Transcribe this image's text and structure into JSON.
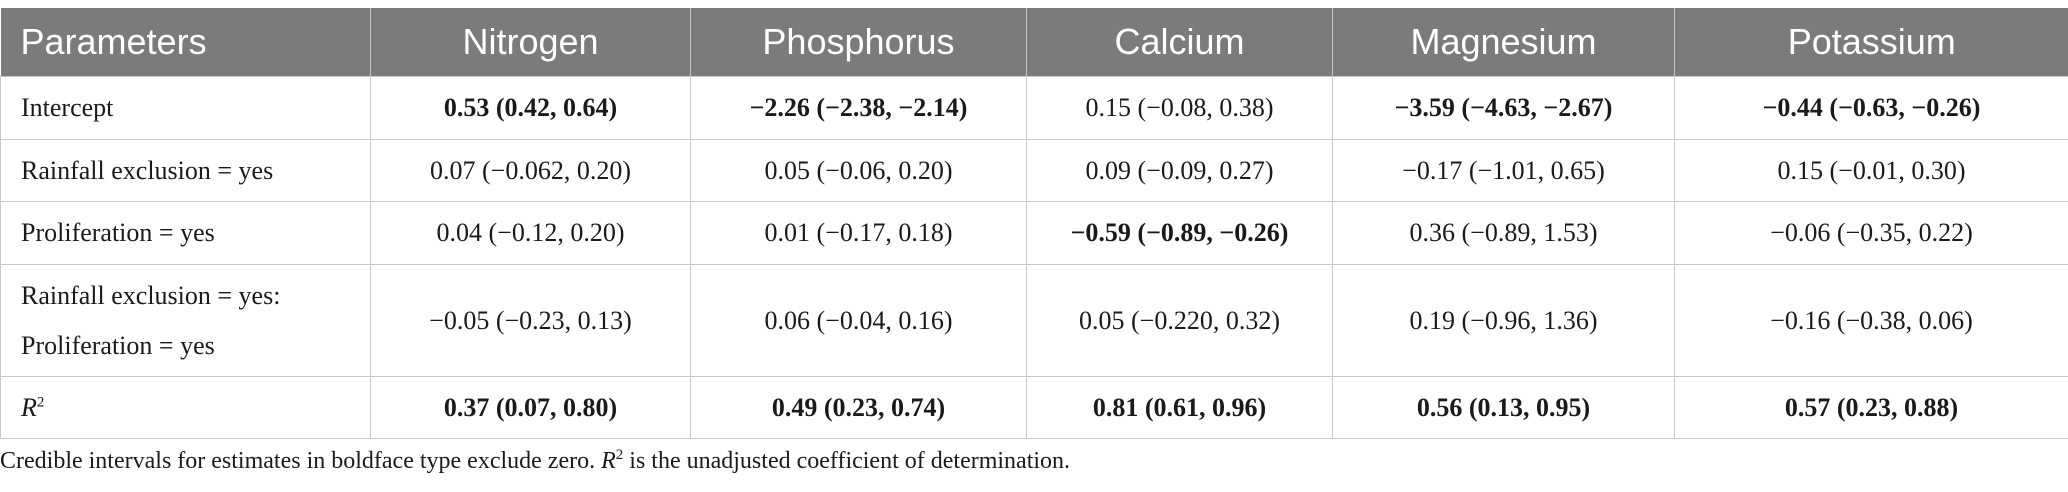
{
  "table": {
    "headers": [
      "Parameters",
      "Nitrogen",
      "Phosphorus",
      "Calcium",
      "Magnesium",
      "Potassium"
    ],
    "rows": [
      {
        "label": "Intercept",
        "cells": [
          {
            "text": "0.53 (0.42, 0.64)",
            "bold": true
          },
          {
            "text": "−2.26 (−2.38, −2.14)",
            "bold": true
          },
          {
            "text": "0.15 (−0.08, 0.38)",
            "bold": false
          },
          {
            "text": "−3.59 (−4.63, −2.67)",
            "bold": true
          },
          {
            "text": "−0.44 (−0.63, −0.26)",
            "bold": true
          }
        ]
      },
      {
        "label": "Rainfall exclusion = yes",
        "cells": [
          {
            "text": "0.07 (−0.062, 0.20)",
            "bold": false
          },
          {
            "text": "0.05 (−0.06, 0.20)",
            "bold": false
          },
          {
            "text": "0.09 (−0.09, 0.27)",
            "bold": false
          },
          {
            "text": "−0.17 (−1.01, 0.65)",
            "bold": false
          },
          {
            "text": "0.15 (−0.01, 0.30)",
            "bold": false
          }
        ]
      },
      {
        "label": "Proliferation = yes",
        "cells": [
          {
            "text": "0.04 (−0.12, 0.20)",
            "bold": false
          },
          {
            "text": "0.01 (−0.17, 0.18)",
            "bold": false
          },
          {
            "text": "−0.59 (−0.89, −0.26)",
            "bold": true
          },
          {
            "text": "0.36 (−0.89, 1.53)",
            "bold": false
          },
          {
            "text": "−0.06 (−0.35, 0.22)",
            "bold": false
          }
        ]
      },
      {
        "label_line1": "Rainfall exclusion = yes:",
        "label_line2": "Proliferation = yes",
        "cells": [
          {
            "text": "−0.05 (−0.23, 0.13)",
            "bold": false
          },
          {
            "text": "0.06 (−0.04, 0.16)",
            "bold": false
          },
          {
            "text": "0.05 (−0.220, 0.32)",
            "bold": false
          },
          {
            "text": "0.19 (−0.96, 1.36)",
            "bold": false
          },
          {
            "text": "−0.16 (−0.38, 0.06)",
            "bold": false
          }
        ]
      },
      {
        "label_main": "R",
        "label_sup": "2",
        "cells": [
          {
            "text": "0.37 (0.07, 0.80)",
            "bold": true
          },
          {
            "text": "0.49 (0.23, 0.74)",
            "bold": true
          },
          {
            "text": "0.81 (0.61, 0.96)",
            "bold": true
          },
          {
            "text": "0.56 (0.13, 0.95)",
            "bold": true
          },
          {
            "text": "0.57 (0.23, 0.88)",
            "bold": true
          }
        ]
      }
    ]
  },
  "footnote": {
    "part1": "Credible intervals for estimates in boldface type exclude zero. ",
    "r_symbol": "R",
    "r_sup": "2",
    "part2": " is the unadjusted coefficient of determination."
  }
}
